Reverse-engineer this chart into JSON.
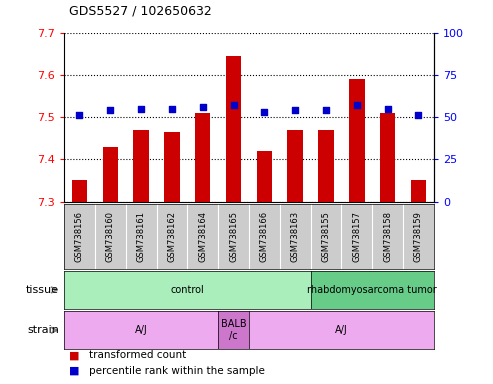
{
  "title": "GDS5527 / 102650632",
  "samples": [
    "GSM738156",
    "GSM738160",
    "GSM738161",
    "GSM738162",
    "GSM738164",
    "GSM738165",
    "GSM738166",
    "GSM738163",
    "GSM738155",
    "GSM738157",
    "GSM738158",
    "GSM738159"
  ],
  "bar_values": [
    7.35,
    7.43,
    7.47,
    7.465,
    7.51,
    7.645,
    7.42,
    7.47,
    7.47,
    7.59,
    7.51,
    7.35
  ],
  "dot_values": [
    51,
    54,
    55,
    55,
    56,
    57,
    53,
    54,
    54,
    57,
    55,
    51
  ],
  "ymin": 7.3,
  "ymax": 7.7,
  "y2min": 0,
  "y2max": 100,
  "yticks": [
    7.3,
    7.4,
    7.5,
    7.6,
    7.7
  ],
  "y2ticks": [
    0,
    25,
    50,
    75,
    100
  ],
  "bar_color": "#cc0000",
  "dot_color": "#0000cc",
  "tissue_groups": [
    {
      "label": "control",
      "start": 0,
      "end": 8,
      "color": "#aaeebb"
    },
    {
      "label": "rhabdomyosarcoma tumor",
      "start": 8,
      "end": 12,
      "color": "#66cc88"
    }
  ],
  "strain_groups": [
    {
      "label": "A/J",
      "start": 0,
      "end": 5,
      "color": "#eeaaee"
    },
    {
      "label": "BALB\n/c",
      "start": 5,
      "end": 6,
      "color": "#cc77cc"
    },
    {
      "label": "A/J",
      "start": 6,
      "end": 12,
      "color": "#eeaaee"
    }
  ],
  "legend_items": [
    {
      "label": "transformed count",
      "color": "#cc0000"
    },
    {
      "label": "percentile rank within the sample",
      "color": "#0000cc"
    }
  ],
  "sample_box_color": "#cccccc",
  "sample_box_border": "#888888"
}
